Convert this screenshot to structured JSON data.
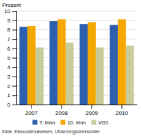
{
  "chart_data": {
    "type": "bar",
    "categories": [
      "2007",
      "2008",
      "2009",
      "2010"
    ],
    "series": [
      {
        "name": "7. trinn",
        "color": "#2E5FAC",
        "values": [
          8.3,
          8.9,
          8.6,
          8.5
        ]
      },
      {
        "name": "10. trinn",
        "color": "#F5A800",
        "values": [
          8.4,
          9.1,
          8.8,
          9.1
        ]
      },
      {
        "name": "VG1",
        "color": "#C8CC9B",
        "values": [
          6.1,
          6.6,
          6.1,
          6.3
        ]
      }
    ],
    "ylabel": "Prosent",
    "source": "Kilde: Elevundersøkelsen, Utdanningsdirektoratet.",
    "ylim": [
      0,
      10
    ],
    "yticks": [
      0,
      1,
      2,
      3,
      4,
      5,
      6,
      7,
      8,
      9,
      10
    ],
    "grid": true,
    "legend": "bottom"
  }
}
